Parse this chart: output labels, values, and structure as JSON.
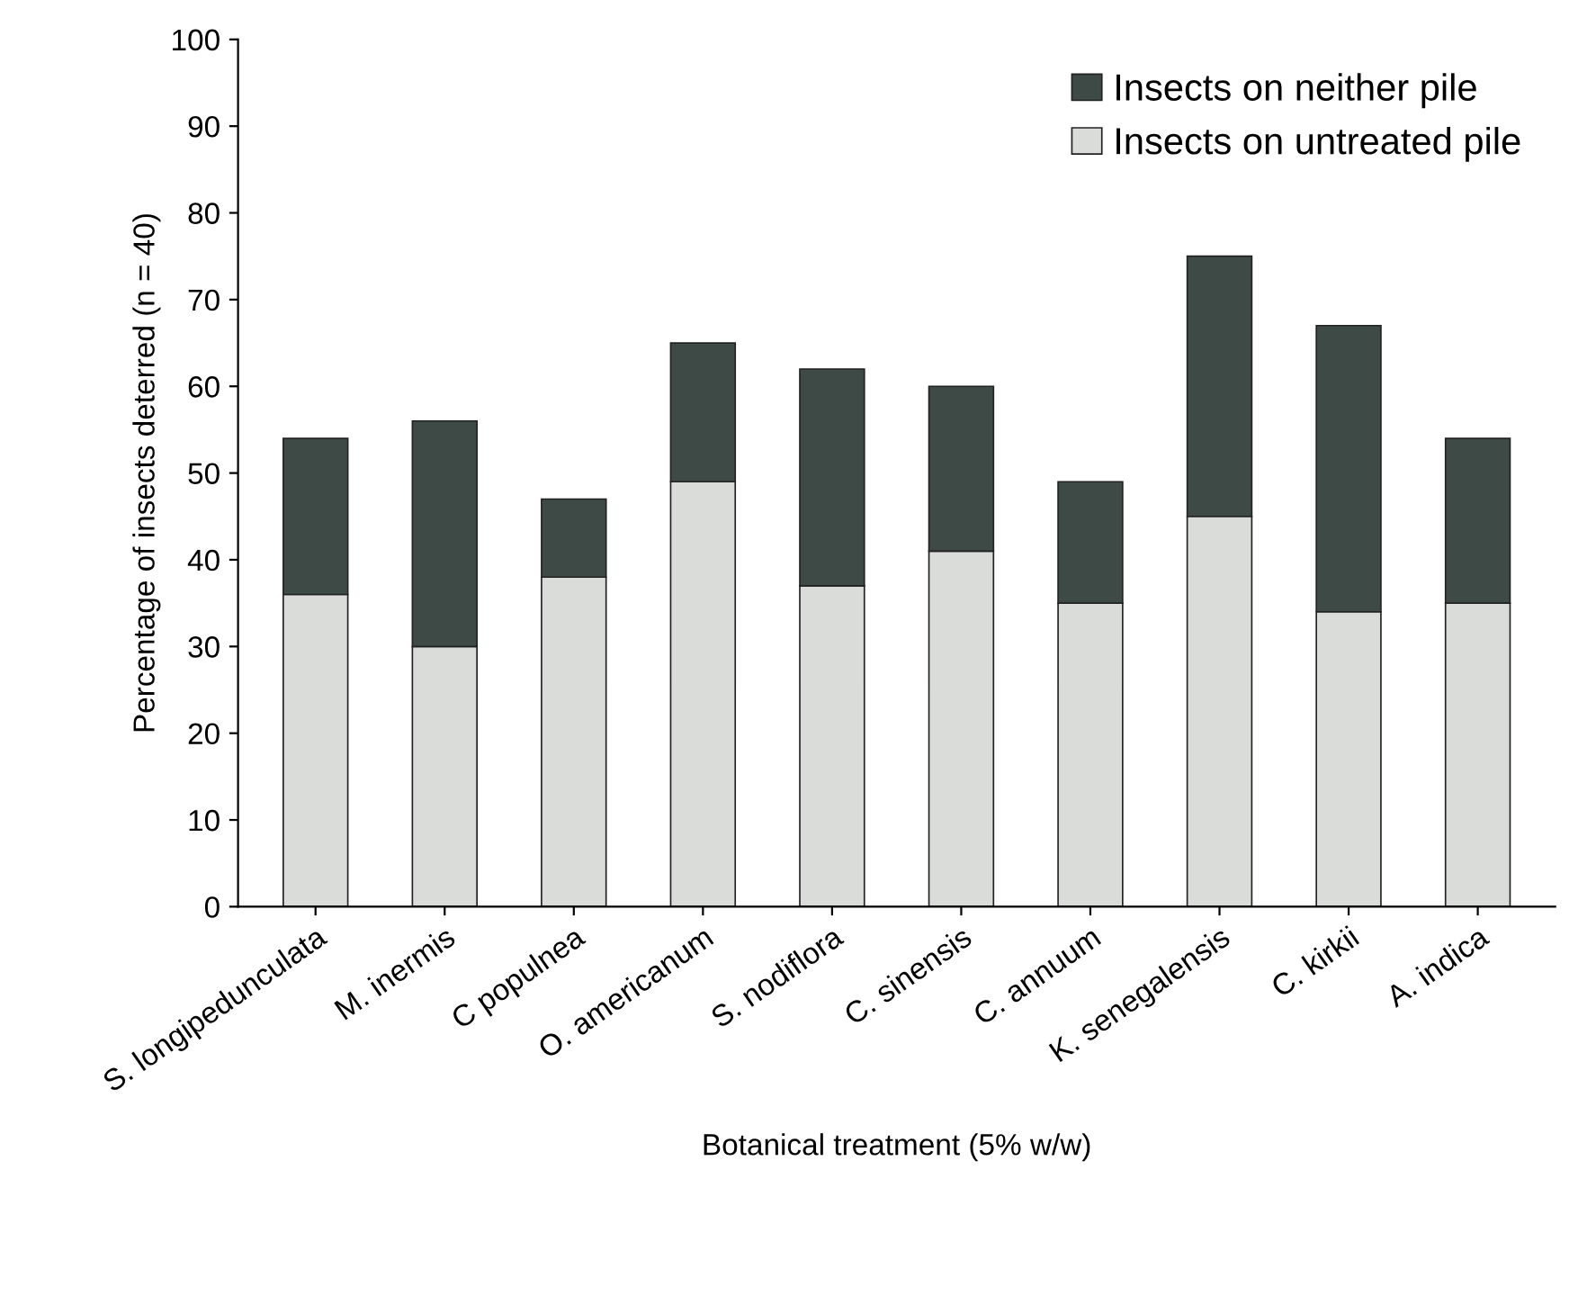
{
  "chart_data": {
    "type": "bar",
    "stacked": true,
    "xlabel": "Botanical treatment (5% w/w)",
    "ylabel": "Percentage of insects deterred (n = 40)",
    "categories": [
      "S. longipedunculata",
      "M. inermis",
      "C populnea",
      "O. americanum",
      "S. nodiflora",
      "C. sinensis",
      "C. annuum",
      "K. senegalensis",
      "C. kirkii",
      "A. indica"
    ],
    "series": [
      {
        "name": "Insects on untreated pile",
        "color": "#d9dcd8",
        "values": [
          36,
          30,
          38,
          49,
          37,
          41,
          35,
          45,
          34,
          35
        ]
      },
      {
        "name": "Insects on neither pile",
        "color": "#3d4a45",
        "values": [
          18,
          26,
          9,
          16,
          25,
          19,
          14,
          30,
          33,
          19
        ]
      }
    ],
    "ylim": [
      0,
      100
    ],
    "yticks": [
      0,
      10,
      20,
      30,
      40,
      50,
      60,
      70,
      80,
      90,
      100
    ],
    "grid": false,
    "legend": "top right"
  }
}
